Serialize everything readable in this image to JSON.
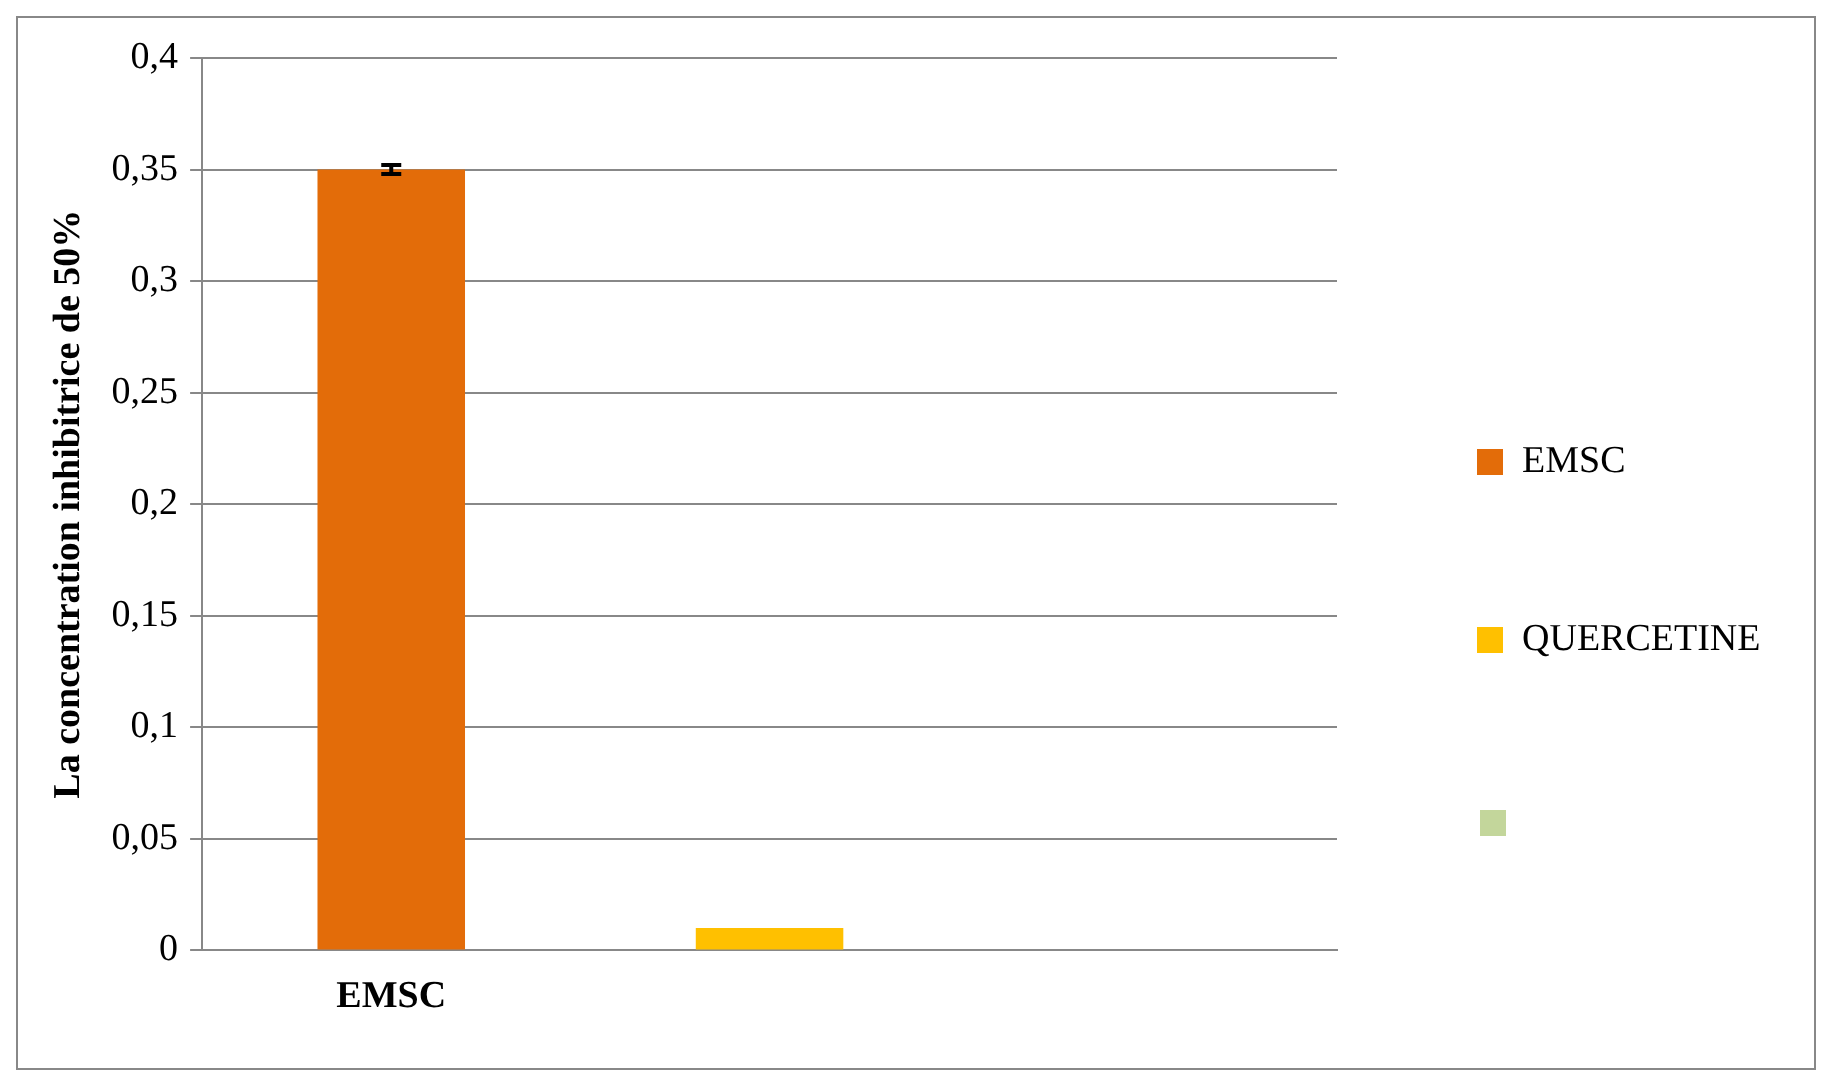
{
  "chart_data": {
    "type": "bar",
    "ylabel": "La concentration inhibitrice de 50%",
    "categories": [
      "EMSC",
      null,
      null
    ],
    "series": [
      {
        "name": "EMSC",
        "color": "#e36c09",
        "values": [
          0.35,
          null,
          null
        ],
        "errors": [
          0.002,
          null,
          null
        ]
      },
      {
        "name": "QUERCETINE",
        "color": "#ffc000",
        "values": [
          null,
          0.01,
          null
        ]
      },
      {
        "color": "#c3d69b",
        "values": [
          null,
          null,
          0
        ]
      }
    ],
    "ylim": [
      0,
      0.4
    ],
    "yticks": [
      {
        "value": 0,
        "label": "0"
      },
      {
        "value": 0.05,
        "label": "0,05"
      },
      {
        "value": 0.1,
        "label": "0,1"
      },
      {
        "value": 0.15,
        "label": "0,15"
      },
      {
        "value": 0.2,
        "label": "0,2"
      },
      {
        "value": 0.25,
        "label": "0,25"
      },
      {
        "value": 0.3,
        "label": "0,3"
      },
      {
        "value": 0.35,
        "label": "0,35"
      },
      {
        "value": 0.4,
        "label": "0,4"
      }
    ],
    "grid": "y",
    "legend": "right"
  }
}
